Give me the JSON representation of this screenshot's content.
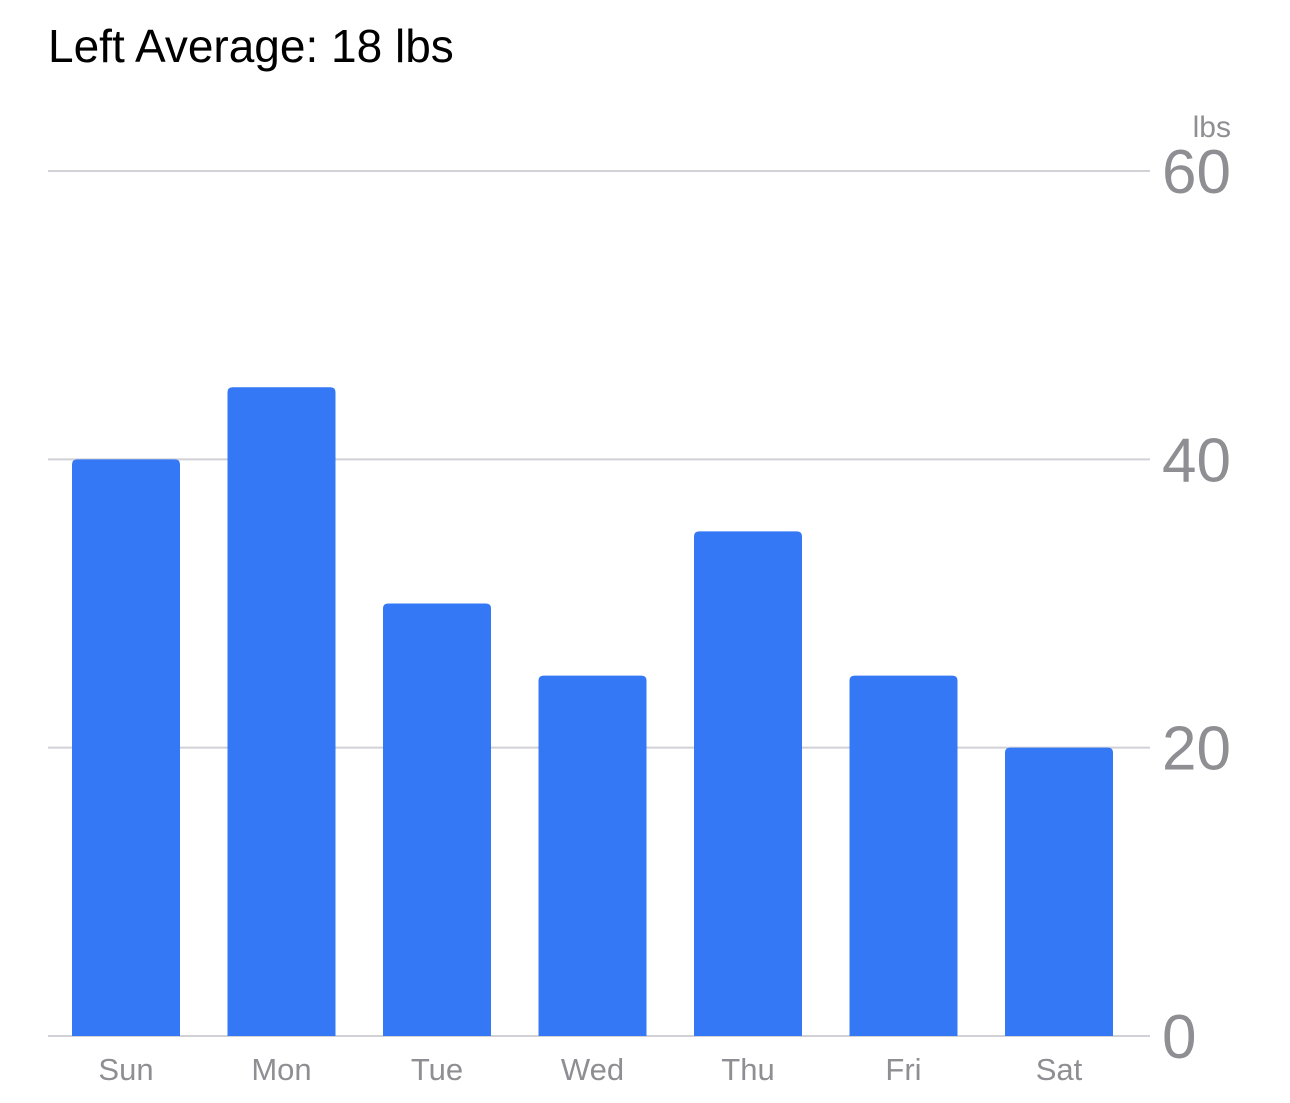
{
  "header": {
    "title": "Left Average: 18 lbs"
  },
  "chart_data": {
    "type": "bar",
    "categories": [
      "Sun",
      "Mon",
      "Tue",
      "Wed",
      "Thu",
      "Fri",
      "Sat"
    ],
    "values": [
      40,
      45,
      30,
      25,
      35,
      25,
      20
    ],
    "ylabel": "lbs",
    "ylim": [
      0,
      60
    ],
    "yticks": [
      0,
      20,
      40,
      60
    ],
    "grid": true,
    "y_axis_side": "right",
    "bar_color": "#3478f6",
    "grid_color": "#d1d1d6",
    "label_color": "#8e8e93"
  }
}
